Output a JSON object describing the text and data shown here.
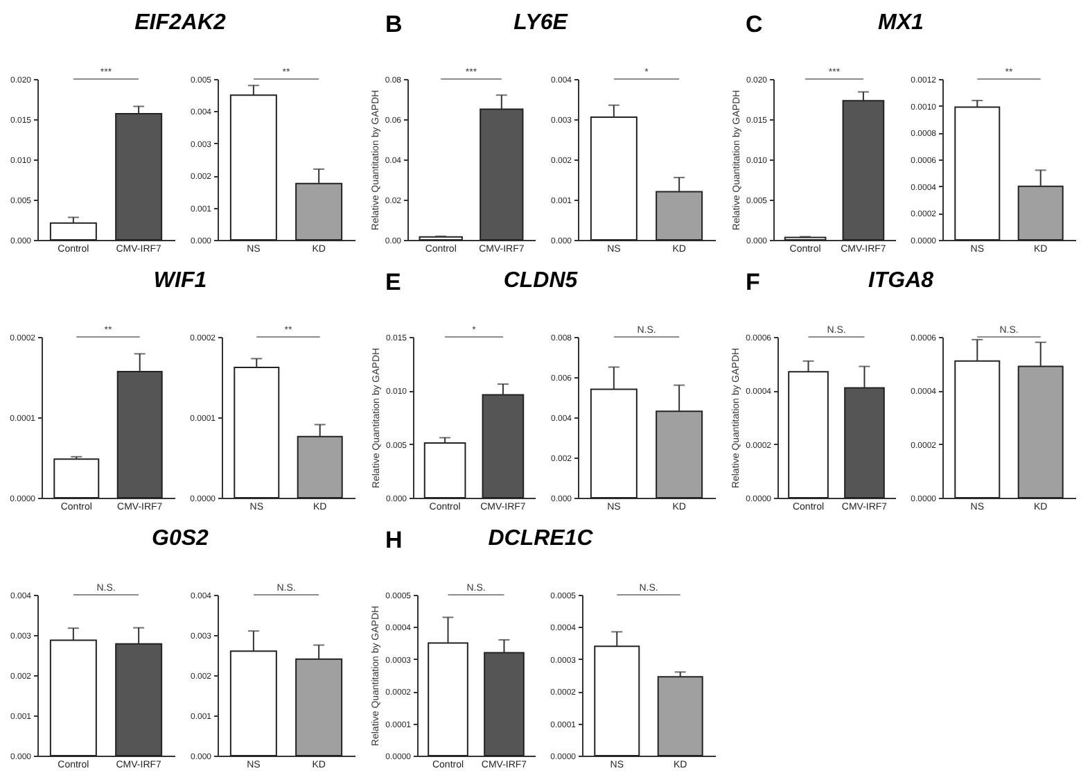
{
  "chart_data": [
    {
      "type": "bar",
      "title": "EIF2AK2",
      "categories": [
        "Control",
        "CMV-IRF7"
      ],
      "values": [
        0.0021,
        0.0157
      ],
      "errors": [
        0.0007,
        0.0009
      ],
      "colors": [
        "#ffffff",
        "#555555"
      ],
      "ylim": [
        0,
        0.02
      ],
      "yticks": [
        {
          "value": 0,
          "label": "0.000"
        },
        {
          "value": 0.005,
          "label": "0.005"
        },
        {
          "value": 0.01,
          "label": "0.010"
        },
        {
          "value": 0.015,
          "label": "0.015"
        },
        {
          "value": 0.02,
          "label": "0.020"
        }
      ],
      "annotations": [
        "***"
      ]
    },
    {
      "type": "bar",
      "categories": [
        "NS",
        "KD"
      ],
      "values": [
        0.0045,
        0.00175
      ],
      "errors": [
        0.0003,
        0.00045
      ],
      "colors": [
        "#ffffff",
        "#a0a0a0"
      ],
      "ylim": [
        0,
        0.005
      ],
      "yticks": [
        {
          "value": 0,
          "label": "0.000"
        },
        {
          "value": 0.001,
          "label": "0.001"
        },
        {
          "value": 0.002,
          "label": "0.002"
        },
        {
          "value": 0.003,
          "label": "0.003"
        },
        {
          "value": 0.004,
          "label": "0.004"
        },
        {
          "value": 0.005,
          "label": "0.005"
        }
      ],
      "annotations": [
        "**"
      ]
    },
    {
      "type": "bar",
      "title": "LY6E",
      "ylabel": "Relative Quantitation by GAPDH",
      "categories": [
        "Control",
        "CMV-IRF7"
      ],
      "values": [
        0.0015,
        0.065
      ],
      "errors": [
        0.0003,
        0.007
      ],
      "colors": [
        "#ffffff",
        "#555555"
      ],
      "ylim": [
        0,
        0.08
      ],
      "yticks": [
        {
          "value": 0,
          "label": "0.00"
        },
        {
          "value": 0.02,
          "label": "0.02"
        },
        {
          "value": 0.04,
          "label": "0.04"
        },
        {
          "value": 0.06,
          "label": "0.06"
        },
        {
          "value": 0.08,
          "label": "0.08"
        }
      ],
      "annotations": [
        "B",
        "***"
      ]
    },
    {
      "type": "bar",
      "categories": [
        "NS",
        "KD"
      ],
      "values": [
        0.00305,
        0.0012
      ],
      "errors": [
        0.0003,
        0.00035
      ],
      "colors": [
        "#ffffff",
        "#a0a0a0"
      ],
      "ylim": [
        0,
        0.004
      ],
      "yticks": [
        {
          "value": 0,
          "label": "0.000"
        },
        {
          "value": 0.001,
          "label": "0.001"
        },
        {
          "value": 0.002,
          "label": "0.002"
        },
        {
          "value": 0.003,
          "label": "0.003"
        },
        {
          "value": 0.004,
          "label": "0.004"
        }
      ],
      "annotations": [
        "*"
      ]
    },
    {
      "type": "bar",
      "title": "MX1",
      "ylabel": "Relative Quantitation by GAPDH",
      "categories": [
        "Control",
        "CMV-IRF7"
      ],
      "values": [
        0.0003,
        0.0173
      ],
      "errors": [
        0.0001,
        0.0011
      ],
      "colors": [
        "#ffffff",
        "#555555"
      ],
      "ylim": [
        0,
        0.02
      ],
      "yticks": [
        {
          "value": 0,
          "label": "0.000"
        },
        {
          "value": 0.005,
          "label": "0.005"
        },
        {
          "value": 0.01,
          "label": "0.010"
        },
        {
          "value": 0.015,
          "label": "0.015"
        },
        {
          "value": 0.02,
          "label": "0.020"
        }
      ],
      "annotations": [
        "C",
        "***"
      ]
    },
    {
      "type": "bar",
      "categories": [
        "NS",
        "KD"
      ],
      "values": [
        0.00099,
        0.0004
      ],
      "errors": [
        5e-05,
        0.00012
      ],
      "colors": [
        "#ffffff",
        "#a0a0a0"
      ],
      "ylim": [
        0,
        0.0012
      ],
      "yticks": [
        {
          "value": 0,
          "label": "0.0000"
        },
        {
          "value": 0.0002,
          "label": "0.0002"
        },
        {
          "value": 0.0004,
          "label": "0.0004"
        },
        {
          "value": 0.0006,
          "label": "0.0006"
        },
        {
          "value": 0.0008,
          "label": "0.0008"
        },
        {
          "value": 0.001,
          "label": "0.0010"
        },
        {
          "value": 0.0012,
          "label": "0.0012"
        }
      ],
      "annotations": [
        "**"
      ]
    },
    {
      "type": "bar",
      "title": "WIF1",
      "categories": [
        "Control",
        "CMV-IRF7"
      ],
      "values": [
        4.8e-05,
        0.000157
      ],
      "errors": [
        3e-06,
        2.2e-05
      ],
      "colors": [
        "#ffffff",
        "#555555"
      ],
      "ylim": [
        0,
        0.0002
      ],
      "yticks": [
        {
          "value": 0,
          "label": "0.0000"
        },
        {
          "value": 0.0001,
          "label": "0.0001"
        },
        {
          "value": 0.0002,
          "label": "0.0002"
        }
      ],
      "annotations": [
        "**"
      ]
    },
    {
      "type": "bar",
      "categories": [
        "NS",
        "KD"
      ],
      "values": [
        0.000162,
        7.6e-05
      ],
      "errors": [
        1.1e-05,
        1.5e-05
      ],
      "colors": [
        "#ffffff",
        "#a0a0a0"
      ],
      "ylim": [
        0,
        0.0002
      ],
      "yticks": [
        {
          "value": 0,
          "label": "0.0000"
        },
        {
          "value": 0.0001,
          "label": "0.0001"
        },
        {
          "value": 0.0002,
          "label": "0.0002"
        }
      ],
      "annotations": [
        "**"
      ]
    },
    {
      "type": "bar",
      "title": "CLDN5",
      "ylabel": "Relative Quantitation by GAPDH",
      "categories": [
        "Control",
        "CMV-IRF7"
      ],
      "values": [
        0.0051,
        0.0096
      ],
      "errors": [
        0.0005,
        0.001
      ],
      "colors": [
        "#ffffff",
        "#555555"
      ],
      "ylim": [
        0,
        0.015
      ],
      "yticks": [
        {
          "value": 0,
          "label": "0.000"
        },
        {
          "value": 0.005,
          "label": "0.005"
        },
        {
          "value": 0.01,
          "label": "0.010"
        },
        {
          "value": 0.015,
          "label": "0.015"
        }
      ],
      "annotations": [
        "E",
        "*"
      ]
    },
    {
      "type": "bar",
      "categories": [
        "NS",
        "KD"
      ],
      "values": [
        0.0054,
        0.0043
      ],
      "errors": [
        0.0011,
        0.0013
      ],
      "colors": [
        "#ffffff",
        "#a0a0a0"
      ],
      "ylim": [
        0,
        0.008
      ],
      "yticks": [
        {
          "value": 0,
          "label": "0.000"
        },
        {
          "value": 0.002,
          "label": "0.002"
        },
        {
          "value": 0.004,
          "label": "0.004"
        },
        {
          "value": 0.006,
          "label": "0.006"
        },
        {
          "value": 0.008,
          "label": "0.008"
        }
      ],
      "annotations": [
        "N.S."
      ]
    },
    {
      "type": "bar",
      "title": "ITGA8",
      "ylabel": "Relative Quantitation by GAPDH",
      "categories": [
        "Control",
        "CMV-IRF7"
      ],
      "values": [
        0.00047,
        0.00041
      ],
      "errors": [
        4e-05,
        8e-05
      ],
      "colors": [
        "#ffffff",
        "#555555"
      ],
      "ylim": [
        0,
        0.0006
      ],
      "yticks": [
        {
          "value": 0,
          "label": "0.0000"
        },
        {
          "value": 0.0002,
          "label": "0.0002"
        },
        {
          "value": 0.0004,
          "label": "0.0004"
        },
        {
          "value": 0.0006,
          "label": "0.0006"
        }
      ],
      "annotations": [
        "F",
        "N.S."
      ]
    },
    {
      "type": "bar",
      "categories": [
        "NS",
        "KD"
      ],
      "values": [
        0.00051,
        0.00049
      ],
      "errors": [
        8e-05,
        9e-05
      ],
      "colors": [
        "#ffffff",
        "#a0a0a0"
      ],
      "ylim": [
        0,
        0.0006
      ],
      "yticks": [
        {
          "value": 0,
          "label": "0.0000"
        },
        {
          "value": 0.0002,
          "label": "0.0002"
        },
        {
          "value": 0.0004,
          "label": "0.0004"
        },
        {
          "value": 0.0006,
          "label": "0.0006"
        }
      ],
      "annotations": [
        "N.S."
      ]
    },
    {
      "type": "bar",
      "title": "G0S2",
      "categories": [
        "Control",
        "CMV-IRF7"
      ],
      "values": [
        0.00287,
        0.00278
      ],
      "errors": [
        0.0003,
        0.0004
      ],
      "colors": [
        "#ffffff",
        "#555555"
      ],
      "ylim": [
        0,
        0.004
      ],
      "yticks": [
        {
          "value": 0,
          "label": "0.000"
        },
        {
          "value": 0.001,
          "label": "0.001"
        },
        {
          "value": 0.002,
          "label": "0.002"
        },
        {
          "value": 0.003,
          "label": "0.003"
        },
        {
          "value": 0.004,
          "label": "0.004"
        }
      ],
      "annotations": [
        "N.S."
      ]
    },
    {
      "type": "bar",
      "categories": [
        "NS",
        "KD"
      ],
      "values": [
        0.0026,
        0.0024
      ],
      "errors": [
        0.0005,
        0.00035
      ],
      "colors": [
        "#ffffff",
        "#a0a0a0"
      ],
      "ylim": [
        0,
        0.004
      ],
      "yticks": [
        {
          "value": 0,
          "label": "0.000"
        },
        {
          "value": 0.001,
          "label": "0.001"
        },
        {
          "value": 0.002,
          "label": "0.002"
        },
        {
          "value": 0.003,
          "label": "0.003"
        },
        {
          "value": 0.004,
          "label": "0.004"
        }
      ],
      "annotations": [
        "N.S."
      ]
    },
    {
      "type": "bar",
      "title": "DCLRE1C",
      "ylabel": "Relative Quantitation by GAPDH",
      "categories": [
        "Control",
        "CMV-IRF7"
      ],
      "values": [
        0.00035,
        0.00032
      ],
      "errors": [
        8e-05,
        4e-05
      ],
      "colors": [
        "#ffffff",
        "#555555"
      ],
      "ylim": [
        0,
        0.0005
      ],
      "yticks": [
        {
          "value": 0,
          "label": "0.0000"
        },
        {
          "value": 0.0001,
          "label": "0.0001"
        },
        {
          "value": 0.0002,
          "label": "0.0002"
        },
        {
          "value": 0.0003,
          "label": "0.0003"
        },
        {
          "value": 0.0004,
          "label": "0.0004"
        },
        {
          "value": 0.0005,
          "label": "0.0005"
        }
      ],
      "annotations": [
        "H",
        "N.S."
      ]
    },
    {
      "type": "bar",
      "categories": [
        "NS",
        "KD"
      ],
      "values": [
        0.00034,
        0.000245
      ],
      "errors": [
        4.5e-05,
        1.5e-05
      ],
      "colors": [
        "#ffffff",
        "#a0a0a0"
      ],
      "ylim": [
        0,
        0.0005
      ],
      "yticks": [
        {
          "value": 0,
          "label": "0.0000"
        },
        {
          "value": 0.0001,
          "label": "0.0001"
        },
        {
          "value": 0.0002,
          "label": "0.0002"
        },
        {
          "value": 0.0003,
          "label": "0.0003"
        },
        {
          "value": 0.0004,
          "label": "0.0004"
        },
        {
          "value": 0.0005,
          "label": "0.0005"
        }
      ],
      "annotations": [
        "N.S."
      ]
    }
  ]
}
